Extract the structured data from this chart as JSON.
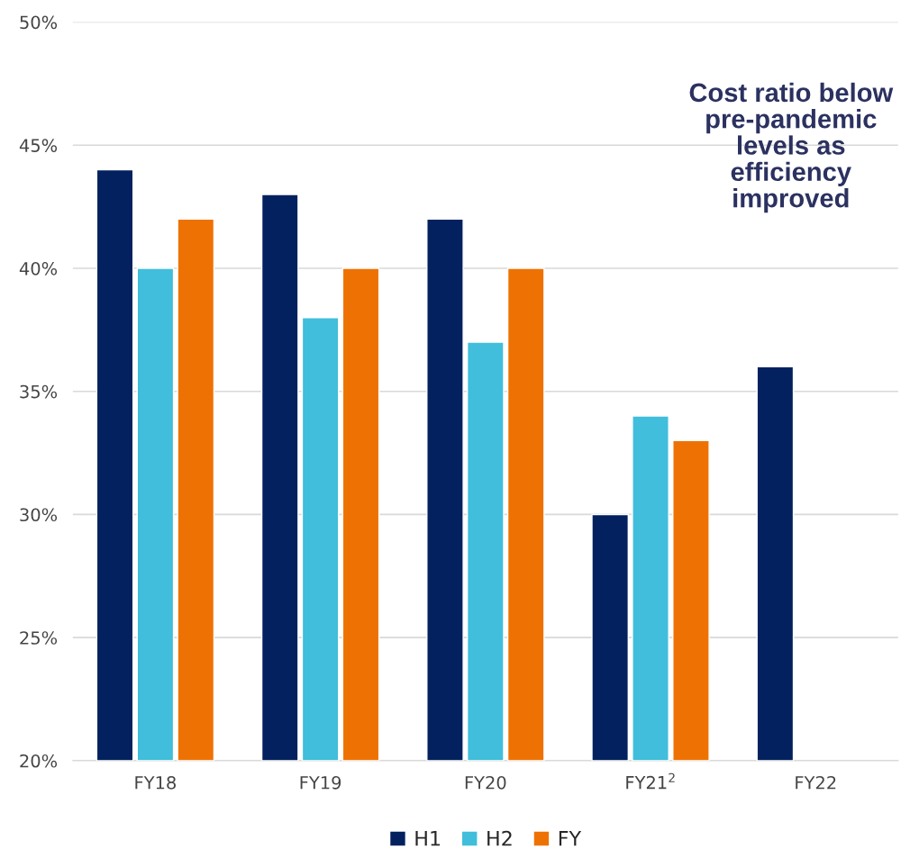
{
  "chart_data": {
    "type": "bar",
    "categories": [
      "FY18",
      "FY19",
      "FY20",
      "FY21$^{2}$",
      "FY22"
    ],
    "series": [
      {
        "name": "H1",
        "color": "#03215e",
        "values": [
          44,
          43,
          42,
          30,
          36
        ]
      },
      {
        "name": "H2",
        "color": "#40bedb",
        "values": [
          40,
          38,
          37,
          34,
          null
        ]
      },
      {
        "name": "FY",
        "color": "#ee7203",
        "values": [
          42,
          40,
          40,
          33,
          null
        ]
      }
    ],
    "ylim": [
      20,
      50
    ],
    "yticks": [
      {
        "value": 20,
        "label": "20%"
      },
      {
        "value": 25,
        "label": "25%"
      },
      {
        "value": 30,
        "label": "30%"
      },
      {
        "value": 35,
        "label": "35%"
      },
      {
        "value": 40,
        "label": "40%"
      },
      {
        "value": 45,
        "label": "45%"
      },
      {
        "value": 50,
        "label": "50%"
      }
    ],
    "grid": "y",
    "legend": "bottom",
    "annotations": [
      "Cost ratio below\npre-pandemic\nlevels as\nefficiency\nimproved"
    ]
  }
}
